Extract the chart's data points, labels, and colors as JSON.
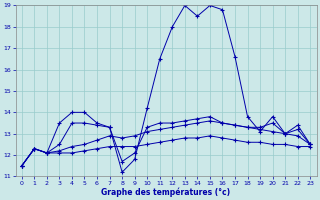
{
  "xlabel": "Graphe des températures (°c)",
  "bg_color": "#cce8e8",
  "line_color": "#0000aa",
  "grid_color": "#99cccc",
  "ylim": [
    11,
    19
  ],
  "xlim": [
    -0.5,
    23.5
  ],
  "yticks": [
    11,
    12,
    13,
    14,
    15,
    16,
    17,
    18,
    19
  ],
  "xticks": [
    0,
    1,
    2,
    3,
    4,
    5,
    6,
    7,
    8,
    9,
    10,
    11,
    12,
    13,
    14,
    15,
    16,
    17,
    18,
    19,
    20,
    21,
    22,
    23
  ],
  "lines": [
    {
      "x": [
        0,
        1,
        2,
        3,
        4,
        5,
        6,
        7,
        8,
        9,
        10,
        11,
        12,
        13,
        14,
        15,
        16,
        17,
        18,
        19,
        20,
        21,
        22,
        23
      ],
      "y": [
        11.5,
        12.3,
        12.1,
        13.5,
        14.0,
        14.0,
        13.5,
        13.3,
        11.2,
        11.8,
        14.2,
        16.5,
        18.0,
        19.0,
        18.5,
        19.0,
        18.8,
        16.6,
        13.8,
        13.1,
        13.8,
        13.0,
        13.4,
        12.5
      ]
    },
    {
      "x": [
        0,
        1,
        2,
        3,
        4,
        5,
        6,
        7,
        8,
        9,
        10,
        11,
        12,
        13,
        14,
        15,
        16,
        17,
        18,
        19,
        20,
        21,
        22,
        23
      ],
      "y": [
        11.5,
        12.3,
        12.1,
        12.1,
        12.1,
        12.2,
        12.3,
        12.4,
        12.4,
        12.4,
        12.5,
        12.6,
        12.7,
        12.8,
        12.8,
        12.9,
        12.8,
        12.7,
        12.6,
        12.6,
        12.5,
        12.5,
        12.4,
        12.4
      ]
    },
    {
      "x": [
        0,
        1,
        2,
        3,
        4,
        5,
        6,
        7,
        8,
        9,
        10,
        11,
        12,
        13,
        14,
        15,
        16,
        17,
        18,
        19,
        20,
        21,
        22,
        23
      ],
      "y": [
        11.5,
        12.3,
        12.1,
        12.2,
        12.4,
        12.5,
        12.7,
        12.9,
        12.8,
        12.9,
        13.1,
        13.2,
        13.3,
        13.4,
        13.5,
        13.6,
        13.5,
        13.4,
        13.3,
        13.2,
        13.1,
        13.0,
        12.9,
        12.5
      ]
    },
    {
      "x": [
        0,
        1,
        2,
        3,
        4,
        5,
        6,
        7,
        8,
        9,
        10,
        11,
        12,
        13,
        14,
        15,
        16,
        17,
        18,
        19,
        20,
        21,
        22,
        23
      ],
      "y": [
        11.5,
        12.3,
        12.1,
        12.5,
        13.5,
        13.5,
        13.4,
        13.3,
        11.7,
        12.1,
        13.3,
        13.5,
        13.5,
        13.6,
        13.7,
        13.8,
        13.5,
        13.4,
        13.3,
        13.3,
        13.5,
        13.0,
        13.2,
        12.5
      ]
    }
  ]
}
